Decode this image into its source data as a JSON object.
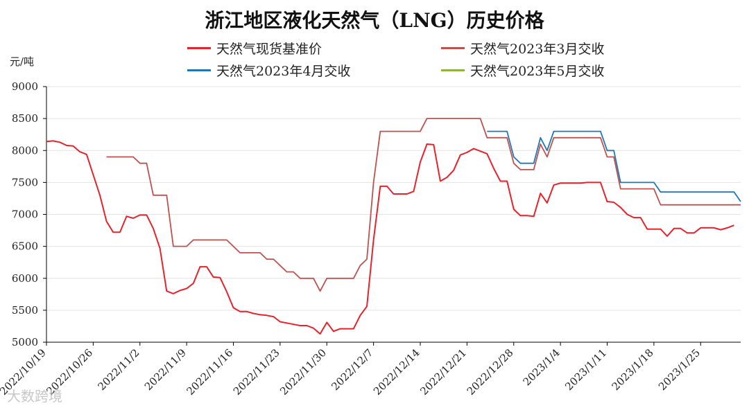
{
  "chart_data": {
    "type": "line",
    "title": "浙江地区液化天然气（LNG）历史价格",
    "ylabel": "元/吨",
    "xlabel": "",
    "ylim": [
      5000,
      9000
    ],
    "yticks": [
      5000,
      5500,
      6000,
      6500,
      7000,
      7500,
      8000,
      8500,
      9000
    ],
    "xlim": [
      "2022-10-19",
      "2023-01-31"
    ],
    "xtick_labels": [
      "2022/10/19",
      "2022/10/26",
      "2022/11/2",
      "2022/11/9",
      "2022/11/16",
      "2022/11/23",
      "2022/11/30",
      "2022/12/7",
      "2022/12/14",
      "2022/12/21",
      "2022/12/28",
      "2023/1/4",
      "2023/1/11",
      "2023/1/18",
      "2023/1/25"
    ],
    "xtick_dates": [
      "2022-10-19",
      "2022-10-26",
      "2022-11-02",
      "2022-11-09",
      "2022-11-16",
      "2022-11-23",
      "2022-11-30",
      "2022-12-07",
      "2022-12-14",
      "2022-12-21",
      "2022-12-28",
      "2023-01-04",
      "2023-01-11",
      "2023-01-18",
      "2023-01-25"
    ],
    "grid": "horizontal",
    "legend_position": "top",
    "series": [
      {
        "name": "天然气现货基准价",
        "color": "#e8212a",
        "points": [
          [
            "2022-10-19",
            8140
          ],
          [
            "2022-10-20",
            8150
          ],
          [
            "2022-10-21",
            8130
          ],
          [
            "2022-10-22",
            8080
          ],
          [
            "2022-10-23",
            8070
          ],
          [
            "2022-10-24",
            7980
          ],
          [
            "2022-10-25",
            7940
          ],
          [
            "2022-10-26",
            7620
          ],
          [
            "2022-10-27",
            7300
          ],
          [
            "2022-10-28",
            6890
          ],
          [
            "2022-10-29",
            6720
          ],
          [
            "2022-10-30",
            6720
          ],
          [
            "2022-10-31",
            6970
          ],
          [
            "2022-11-01",
            6940
          ],
          [
            "2022-11-02",
            6990
          ],
          [
            "2022-11-03",
            6990
          ],
          [
            "2022-11-04",
            6780
          ],
          [
            "2022-11-05",
            6470
          ],
          [
            "2022-11-06",
            5800
          ],
          [
            "2022-11-07",
            5760
          ],
          [
            "2022-11-08",
            5810
          ],
          [
            "2022-11-09",
            5840
          ],
          [
            "2022-11-10",
            5920
          ],
          [
            "2022-11-11",
            6180
          ],
          [
            "2022-11-12",
            6180
          ],
          [
            "2022-11-13",
            6020
          ],
          [
            "2022-11-14",
            6010
          ],
          [
            "2022-11-15",
            5790
          ],
          [
            "2022-11-16",
            5540
          ],
          [
            "2022-11-17",
            5480
          ],
          [
            "2022-11-18",
            5480
          ],
          [
            "2022-11-19",
            5450
          ],
          [
            "2022-11-20",
            5430
          ],
          [
            "2022-11-21",
            5420
          ],
          [
            "2022-11-22",
            5400
          ],
          [
            "2022-11-23",
            5320
          ],
          [
            "2022-11-24",
            5300
          ],
          [
            "2022-11-25",
            5280
          ],
          [
            "2022-11-26",
            5260
          ],
          [
            "2022-11-27",
            5260
          ],
          [
            "2022-11-28",
            5220
          ],
          [
            "2022-11-29",
            5130
          ],
          [
            "2022-11-30",
            5310
          ],
          [
            "2022-12-01",
            5170
          ],
          [
            "2022-12-02",
            5210
          ],
          [
            "2022-12-03",
            5210
          ],
          [
            "2022-12-04",
            5210
          ],
          [
            "2022-12-05",
            5420
          ],
          [
            "2022-12-06",
            5560
          ],
          [
            "2022-12-07",
            6600
          ],
          [
            "2022-12-08",
            7440
          ],
          [
            "2022-12-09",
            7440
          ],
          [
            "2022-12-10",
            7320
          ],
          [
            "2022-12-11",
            7320
          ],
          [
            "2022-12-12",
            7320
          ],
          [
            "2022-12-13",
            7360
          ],
          [
            "2022-12-14",
            7820
          ],
          [
            "2022-12-15",
            8100
          ],
          [
            "2022-12-16",
            8090
          ],
          [
            "2022-12-17",
            7520
          ],
          [
            "2022-12-18",
            7580
          ],
          [
            "2022-12-19",
            7690
          ],
          [
            "2022-12-20",
            7930
          ],
          [
            "2022-12-21",
            7970
          ],
          [
            "2022-12-22",
            8030
          ],
          [
            "2022-12-23",
            7990
          ],
          [
            "2022-12-24",
            7950
          ],
          [
            "2022-12-25",
            7720
          ],
          [
            "2022-12-26",
            7520
          ],
          [
            "2022-12-27",
            7520
          ],
          [
            "2022-12-28",
            7080
          ],
          [
            "2022-12-29",
            6980
          ],
          [
            "2022-12-30",
            6980
          ],
          [
            "2022-12-31",
            6970
          ],
          [
            "2023-01-01",
            7330
          ],
          [
            "2023-01-02",
            7180
          ],
          [
            "2023-01-03",
            7460
          ],
          [
            "2023-01-04",
            7490
          ],
          [
            "2023-01-05",
            7490
          ],
          [
            "2023-01-06",
            7490
          ],
          [
            "2023-01-07",
            7490
          ],
          [
            "2023-01-08",
            7500
          ],
          [
            "2023-01-09",
            7500
          ],
          [
            "2023-01-10",
            7500
          ],
          [
            "2023-01-11",
            7200
          ],
          [
            "2023-01-12",
            7190
          ],
          [
            "2023-01-13",
            7110
          ],
          [
            "2023-01-14",
            7000
          ],
          [
            "2023-01-15",
            6950
          ],
          [
            "2023-01-16",
            6950
          ],
          [
            "2023-01-17",
            6770
          ],
          [
            "2023-01-18",
            6770
          ],
          [
            "2023-01-19",
            6770
          ],
          [
            "2023-01-20",
            6660
          ],
          [
            "2023-01-21",
            6780
          ],
          [
            "2023-01-22",
            6780
          ],
          [
            "2023-01-23",
            6710
          ],
          [
            "2023-01-24",
            6710
          ],
          [
            "2023-01-25",
            6790
          ],
          [
            "2023-01-26",
            6790
          ],
          [
            "2023-01-27",
            6790
          ],
          [
            "2023-01-28",
            6760
          ],
          [
            "2023-01-29",
            6790
          ],
          [
            "2023-01-30",
            6830
          ]
        ]
      },
      {
        "name": "天然气2023年3月交收",
        "color": "#c0504d",
        "points": [
          [
            "2022-10-28",
            7900
          ],
          [
            "2022-10-29",
            7900
          ],
          [
            "2022-10-30",
            7900
          ],
          [
            "2022-10-31",
            7900
          ],
          [
            "2022-11-01",
            7900
          ],
          [
            "2022-11-02",
            7800
          ],
          [
            "2022-11-03",
            7800
          ],
          [
            "2022-11-04",
            7300
          ],
          [
            "2022-11-05",
            7300
          ],
          [
            "2022-11-06",
            7300
          ],
          [
            "2022-11-07",
            6500
          ],
          [
            "2022-11-08",
            6500
          ],
          [
            "2022-11-09",
            6500
          ],
          [
            "2022-11-10",
            6600
          ],
          [
            "2022-11-11",
            6600
          ],
          [
            "2022-11-12",
            6600
          ],
          [
            "2022-11-13",
            6600
          ],
          [
            "2022-11-14",
            6600
          ],
          [
            "2022-11-15",
            6600
          ],
          [
            "2022-11-16",
            6500
          ],
          [
            "2022-11-17",
            6400
          ],
          [
            "2022-11-18",
            6400
          ],
          [
            "2022-11-19",
            6400
          ],
          [
            "2022-11-20",
            6400
          ],
          [
            "2022-11-21",
            6300
          ],
          [
            "2022-11-22",
            6300
          ],
          [
            "2022-11-23",
            6200
          ],
          [
            "2022-11-24",
            6100
          ],
          [
            "2022-11-25",
            6100
          ],
          [
            "2022-11-26",
            6000
          ],
          [
            "2022-11-27",
            6000
          ],
          [
            "2022-11-28",
            6000
          ],
          [
            "2022-11-29",
            5800
          ],
          [
            "2022-11-30",
            6000
          ],
          [
            "2022-12-01",
            6000
          ],
          [
            "2022-12-02",
            6000
          ],
          [
            "2022-12-03",
            6000
          ],
          [
            "2022-12-04",
            6000
          ],
          [
            "2022-12-05",
            6200
          ],
          [
            "2022-12-06",
            6300
          ],
          [
            "2022-12-07",
            7500
          ],
          [
            "2022-12-08",
            8300
          ],
          [
            "2022-12-09",
            8300
          ],
          [
            "2022-12-10",
            8300
          ],
          [
            "2022-12-11",
            8300
          ],
          [
            "2022-12-12",
            8300
          ],
          [
            "2022-12-13",
            8300
          ],
          [
            "2022-12-14",
            8300
          ],
          [
            "2022-12-15",
            8500
          ],
          [
            "2022-12-16",
            8500
          ],
          [
            "2022-12-17",
            8500
          ],
          [
            "2022-12-18",
            8500
          ],
          [
            "2022-12-19",
            8500
          ],
          [
            "2022-12-20",
            8500
          ],
          [
            "2022-12-21",
            8500
          ],
          [
            "2022-12-22",
            8500
          ],
          [
            "2022-12-23",
            8500
          ],
          [
            "2022-12-24",
            8200
          ],
          [
            "2022-12-25",
            8200
          ],
          [
            "2022-12-26",
            8200
          ],
          [
            "2022-12-27",
            8200
          ],
          [
            "2022-12-28",
            7800
          ],
          [
            "2022-12-29",
            7700
          ],
          [
            "2022-12-30",
            7700
          ],
          [
            "2022-12-31",
            7700
          ],
          [
            "2023-01-01",
            8100
          ],
          [
            "2023-01-02",
            7900
          ],
          [
            "2023-01-03",
            8200
          ],
          [
            "2023-01-04",
            8200
          ],
          [
            "2023-01-05",
            8200
          ],
          [
            "2023-01-06",
            8200
          ],
          [
            "2023-01-07",
            8200
          ],
          [
            "2023-01-08",
            8200
          ],
          [
            "2023-01-09",
            8200
          ],
          [
            "2023-01-10",
            8200
          ],
          [
            "2023-01-11",
            7900
          ],
          [
            "2023-01-12",
            7900
          ],
          [
            "2023-01-13",
            7400
          ],
          [
            "2023-01-14",
            7400
          ],
          [
            "2023-01-15",
            7400
          ],
          [
            "2023-01-16",
            7400
          ],
          [
            "2023-01-17",
            7400
          ],
          [
            "2023-01-18",
            7400
          ],
          [
            "2023-01-19",
            7150
          ],
          [
            "2023-01-20",
            7150
          ],
          [
            "2023-01-21",
            7150
          ],
          [
            "2023-01-22",
            7150
          ],
          [
            "2023-01-23",
            7150
          ],
          [
            "2023-01-24",
            7150
          ],
          [
            "2023-01-25",
            7150
          ],
          [
            "2023-01-26",
            7150
          ],
          [
            "2023-01-27",
            7150
          ],
          [
            "2023-01-28",
            7150
          ],
          [
            "2023-01-29",
            7150
          ],
          [
            "2023-01-30",
            7150
          ],
          [
            "2023-01-31",
            7150
          ]
        ]
      },
      {
        "name": "天然气2023年4月交收",
        "color": "#1f77b4",
        "points": [
          [
            "2022-12-24",
            8300
          ],
          [
            "2022-12-25",
            8300
          ],
          [
            "2022-12-26",
            8300
          ],
          [
            "2022-12-27",
            8300
          ],
          [
            "2022-12-28",
            7900
          ],
          [
            "2022-12-29",
            7800
          ],
          [
            "2022-12-30",
            7800
          ],
          [
            "2022-12-31",
            7800
          ],
          [
            "2023-01-01",
            8200
          ],
          [
            "2023-01-02",
            8000
          ],
          [
            "2023-01-03",
            8300
          ],
          [
            "2023-01-04",
            8300
          ],
          [
            "2023-01-05",
            8300
          ],
          [
            "2023-01-06",
            8300
          ],
          [
            "2023-01-07",
            8300
          ],
          [
            "2023-01-08",
            8300
          ],
          [
            "2023-01-09",
            8300
          ],
          [
            "2023-01-10",
            8300
          ],
          [
            "2023-01-11",
            8000
          ],
          [
            "2023-01-12",
            8000
          ],
          [
            "2023-01-13",
            7500
          ],
          [
            "2023-01-14",
            7500
          ],
          [
            "2023-01-15",
            7500
          ],
          [
            "2023-01-16",
            7500
          ],
          [
            "2023-01-17",
            7500
          ],
          [
            "2023-01-18",
            7500
          ],
          [
            "2023-01-19",
            7350
          ],
          [
            "2023-01-20",
            7350
          ],
          [
            "2023-01-21",
            7350
          ],
          [
            "2023-01-22",
            7350
          ],
          [
            "2023-01-23",
            7350
          ],
          [
            "2023-01-24",
            7350
          ],
          [
            "2023-01-25",
            7350
          ],
          [
            "2023-01-26",
            7350
          ],
          [
            "2023-01-27",
            7350
          ],
          [
            "2023-01-28",
            7350
          ],
          [
            "2023-01-29",
            7350
          ],
          [
            "2023-01-30",
            7350
          ],
          [
            "2023-01-31",
            7200
          ]
        ]
      },
      {
        "name": "天然气2023年5月交收",
        "color": "#8cb43c",
        "points": []
      }
    ]
  },
  "watermark": "大数跨境"
}
